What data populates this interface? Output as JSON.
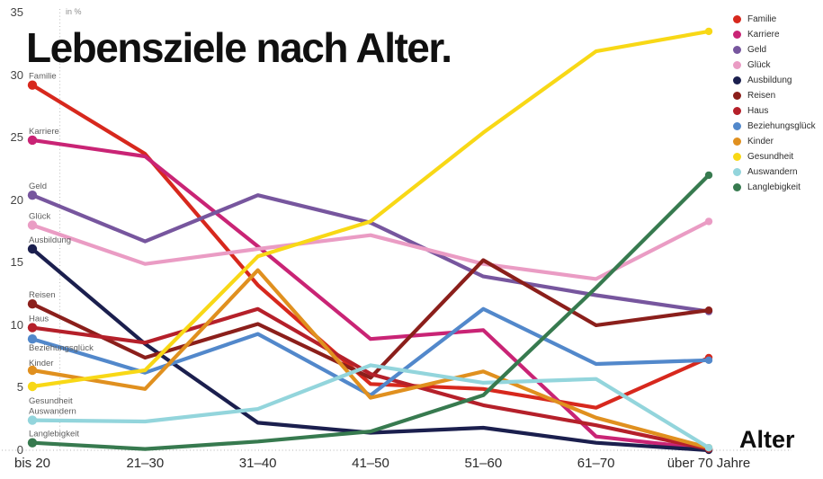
{
  "title": "Lebensziele nach Alter.",
  "y_axis": {
    "unit_label": "in %",
    "ticks": [
      35,
      30,
      25,
      20,
      15,
      10,
      5,
      0
    ]
  },
  "x_axis": {
    "title": "Alter",
    "categories": [
      "bis 20",
      "21–30",
      "31–40",
      "41–50",
      "51–60",
      "61–70",
      "über 70 Jahre"
    ]
  },
  "chart_data": {
    "type": "line",
    "title": "Lebensziele nach Alter.",
    "ylabel": "in %",
    "xlabel": "Alter",
    "ylim": [
      0,
      35
    ],
    "grid": "dotted y-axis line and dotted zero baseline only",
    "legend_position": "top-right",
    "categories": [
      "bis 20",
      "21–30",
      "31–40",
      "41–50",
      "51–60",
      "61–70",
      "über 70 Jahre"
    ],
    "series": [
      {
        "name": "Familie",
        "color": "#d7281d",
        "label_dy": -7,
        "values": [
          29.2,
          23.7,
          13.2,
          5.3,
          4.9,
          3.4,
          7.4
        ]
      },
      {
        "name": "Karriere",
        "color": "#c92475",
        "label_dy": -7,
        "values": [
          24.8,
          23.5,
          16.3,
          8.9,
          9.6,
          1.1,
          0.1
        ]
      },
      {
        "name": "Geld",
        "color": "#77569e",
        "label_dy": -7,
        "values": [
          20.4,
          16.7,
          20.4,
          18.2,
          13.9,
          12.4,
          11.1
        ]
      },
      {
        "name": "Glück",
        "color": "#ea9cc4",
        "label_dy": -7,
        "values": [
          18.0,
          14.9,
          16.1,
          17.2,
          14.9,
          13.7,
          18.3
        ]
      },
      {
        "name": "Ausbildung",
        "color": "#1b1f4e",
        "label_dy": -7,
        "values": [
          16.1,
          8.5,
          2.2,
          1.4,
          1.8,
          0.6,
          0.0
        ]
      },
      {
        "name": "Reisen",
        "color": "#8b1f1b",
        "label_dy": -7,
        "values": [
          11.7,
          7.4,
          10.1,
          5.8,
          15.2,
          10.0,
          11.2
        ]
      },
      {
        "name": "Haus",
        "color": "#b5202a",
        "label_dy": -7,
        "values": [
          9.8,
          8.6,
          11.3,
          6.1,
          3.6,
          2.0,
          0.1
        ]
      },
      {
        "name": "Beziehungsglück",
        "color": "#5288cb",
        "label_dy": 13,
        "values": [
          8.9,
          6.2,
          9.3,
          4.4,
          11.3,
          6.9,
          7.2
        ]
      },
      {
        "name": "Kinder",
        "color": "#e0901f",
        "label_dy": -5,
        "values": [
          6.4,
          4.9,
          14.4,
          4.2,
          6.3,
          2.6,
          0.2
        ]
      },
      {
        "name": "Gesundheit",
        "color": "#f8d816",
        "label_dy": 19,
        "values": [
          5.1,
          6.4,
          15.5,
          18.3,
          25.4,
          31.9,
          33.5
        ]
      },
      {
        "name": "Auswandern",
        "color": "#93d5dc",
        "label_dy": -7,
        "values": [
          2.4,
          2.3,
          3.3,
          6.8,
          5.4,
          5.7,
          0.2
        ]
      },
      {
        "name": "Langlebigkeit",
        "color": "#377a4f",
        "label_dy": -7,
        "values": [
          0.6,
          0.1,
          0.7,
          1.5,
          4.4,
          13.0,
          22.0
        ]
      }
    ]
  }
}
